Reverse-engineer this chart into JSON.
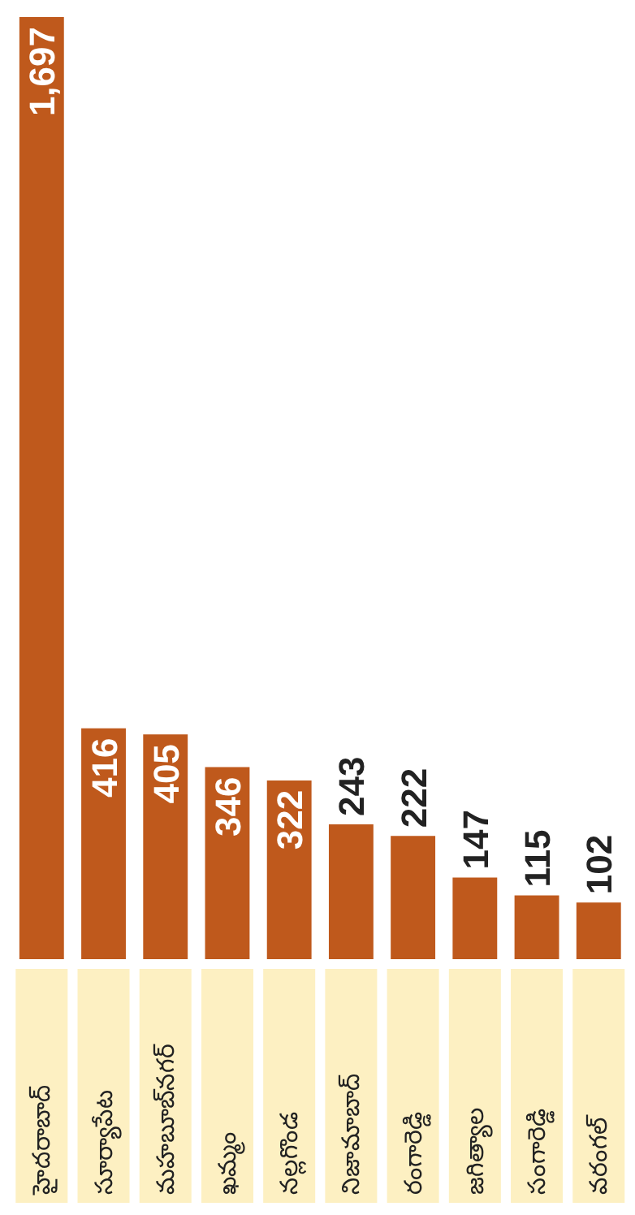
{
  "chart_data": {
    "type": "bar",
    "categories": [
      "హైదరాబాద్",
      "సూర్యాపేట",
      "మహబూబ్‌నగర్",
      "ఖమ్మం",
      "నల్లగొండ",
      "నిజామాబాద్",
      "రంగారెడ్డి",
      "జగిత్యాల",
      "సంగారెడ్డి",
      "వరంగల్"
    ],
    "values": [
      1697,
      416,
      405,
      346,
      322,
      243,
      222,
      147,
      115,
      102
    ],
    "value_labels": [
      "1,697",
      "416",
      "405",
      "346",
      "322",
      "243",
      "222",
      "147",
      "115",
      "102"
    ],
    "color": "#bf591c"
  }
}
